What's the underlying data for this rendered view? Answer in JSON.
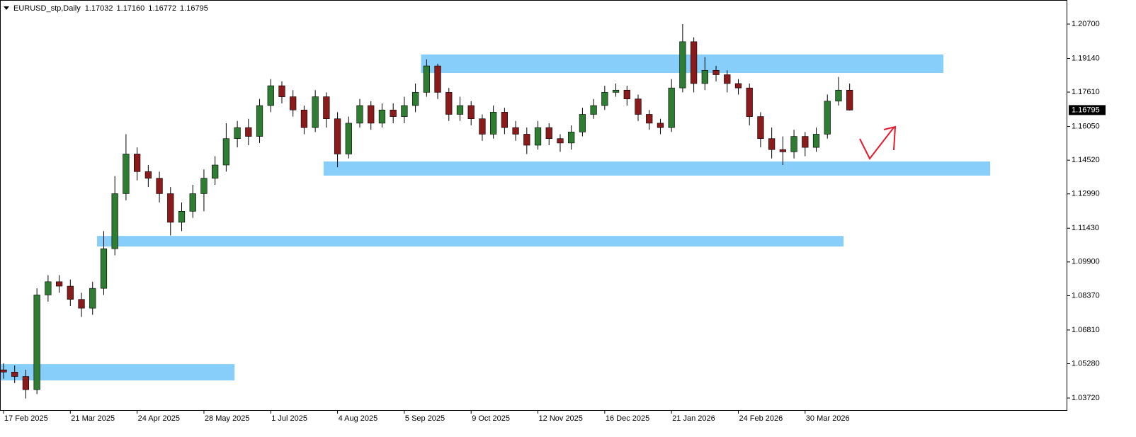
{
  "chart_data": {
    "type": "candlestick",
    "header": {
      "symbol": "EURUSD_stp,Daily",
      "ohlc": [
        {
          "value": 1.17032,
          "label": "1.17032"
        },
        {
          "value": 1.1716,
          "label": "1.17160"
        },
        {
          "value": 1.16772,
          "label": "1.16772"
        },
        {
          "value": 1.16795,
          "label": "1.16795"
        }
      ]
    },
    "bull_color": "#2e7d32",
    "bear_color": "#8b1a1a",
    "zone_color": "#87cefa",
    "x": [
      0,
      4,
      8,
      12,
      16,
      20,
      24,
      28,
      32,
      36,
      40,
      44,
      48,
      52,
      56,
      60,
      64,
      68,
      72,
      76,
      80,
      84,
      88,
      92,
      96,
      100,
      104,
      108,
      112,
      116,
      120,
      124,
      128,
      132,
      136,
      140,
      144,
      148,
      152,
      156,
      160,
      164,
      168,
      172,
      176,
      180,
      184,
      188,
      192,
      196,
      200,
      204,
      208,
      212,
      216,
      220,
      224,
      228,
      232,
      236,
      240,
      244,
      248,
      252,
      256,
      260,
      264,
      268,
      272,
      276,
      280,
      284,
      288,
      292,
      296,
      300,
      304
    ],
    "open": [
      1.05,
      1.049,
      1.047,
      1.041,
      1.084,
      1.09,
      1.088,
      1.082,
      1.078,
      1.087,
      1.105,
      1.13,
      1.148,
      1.14,
      1.137,
      1.13,
      1.117,
      1.122,
      1.13,
      1.137,
      1.143,
      1.155,
      1.16,
      1.156,
      1.17,
      1.179,
      1.174,
      1.168,
      1.16,
      1.174,
      1.164,
      1.148,
      1.162,
      1.17,
      1.162,
      1.168,
      1.165,
      1.17,
      1.176,
      1.188,
      1.176,
      1.166,
      1.17,
      1.164,
      1.157,
      1.167,
      1.16,
      1.157,
      1.152,
      1.16,
      1.155,
      1.153,
      1.158,
      1.166,
      1.17,
      1.176,
      1.177,
      1.173,
      1.166,
      1.162,
      1.16,
      1.178,
      1.199,
      1.18,
      1.186,
      1.184,
      1.18,
      1.178,
      1.165,
      1.155,
      1.15,
      1.149,
      1.156,
      1.151,
      1.157,
      1.172,
      1.177
    ],
    "high": [
      1.053,
      1.052,
      1.05,
      1.087,
      1.093,
      1.093,
      1.091,
      1.085,
      1.09,
      1.113,
      1.138,
      1.157,
      1.151,
      1.143,
      1.14,
      1.133,
      1.126,
      1.134,
      1.141,
      1.147,
      1.162,
      1.163,
      1.164,
      1.173,
      1.182,
      1.181,
      1.177,
      1.17,
      1.177,
      1.176,
      1.167,
      1.165,
      1.173,
      1.172,
      1.171,
      1.171,
      1.174,
      1.18,
      1.191,
      1.189,
      1.178,
      1.174,
      1.172,
      1.166,
      1.17,
      1.169,
      1.163,
      1.16,
      1.163,
      1.162,
      1.157,
      1.161,
      1.169,
      1.173,
      1.179,
      1.18,
      1.179,
      1.175,
      1.168,
      1.164,
      1.182,
      1.207,
      1.201,
      1.192,
      1.188,
      1.186,
      1.182,
      1.18,
      1.167,
      1.16,
      1.156,
      1.159,
      1.158,
      1.16,
      1.175,
      1.183,
      1.18
    ],
    "low": [
      1.046,
      1.044,
      1.037,
      1.039,
      1.081,
      1.085,
      1.079,
      1.074,
      1.075,
      1.084,
      1.102,
      1.127,
      1.136,
      1.133,
      1.126,
      1.111,
      1.113,
      1.119,
      1.122,
      1.134,
      1.14,
      1.151,
      1.152,
      1.153,
      1.167,
      1.171,
      1.165,
      1.157,
      1.158,
      1.16,
      1.142,
      1.146,
      1.16,
      1.159,
      1.16,
      1.162,
      1.162,
      1.167,
      1.174,
      1.173,
      1.163,
      1.163,
      1.161,
      1.154,
      1.155,
      1.157,
      1.154,
      1.148,
      1.15,
      1.152,
      1.149,
      1.15,
      1.156,
      1.164,
      1.168,
      1.174,
      1.17,
      1.163,
      1.159,
      1.157,
      1.158,
      1.176,
      1.176,
      1.177,
      1.181,
      1.176,
      1.175,
      1.161,
      1.151,
      1.146,
      1.143,
      1.146,
      1.147,
      1.149,
      1.155,
      1.17,
      1.16772
    ],
    "close": [
      1.049,
      1.047,
      1.041,
      1.084,
      1.09,
      1.088,
      1.082,
      1.078,
      1.087,
      1.105,
      1.13,
      1.148,
      1.14,
      1.137,
      1.13,
      1.117,
      1.122,
      1.13,
      1.137,
      1.143,
      1.155,
      1.16,
      1.156,
      1.17,
      1.179,
      1.174,
      1.168,
      1.16,
      1.174,
      1.164,
      1.148,
      1.162,
      1.17,
      1.162,
      1.168,
      1.165,
      1.17,
      1.176,
      1.188,
      1.176,
      1.166,
      1.17,
      1.164,
      1.157,
      1.167,
      1.16,
      1.157,
      1.152,
      1.16,
      1.155,
      1.153,
      1.158,
      1.166,
      1.17,
      1.176,
      1.177,
      1.173,
      1.166,
      1.162,
      1.16,
      1.178,
      1.199,
      1.18,
      1.186,
      1.184,
      1.18,
      1.178,
      1.165,
      1.155,
      1.15,
      1.149,
      1.156,
      1.151,
      1.157,
      1.172,
      1.177,
      1.16795
    ],
    "zones": [
      {
        "x": [
          115,
          354.5
        ],
        "ylim": [
          1.1382,
          1.1446
        ]
      },
      {
        "x": [
          150,
          337.7
        ],
        "ylim": [
          1.1848,
          1.1932
        ]
      },
      {
        "x": [
          33.6,
          301.8
        ],
        "ylim": [
          1.106,
          1.1108
        ]
      },
      {
        "x": [
          -1.3,
          83
        ],
        "ylim": [
          1.0452,
          1.0526
        ]
      }
    ],
    "last_price": {
      "value": 1.16795,
      "label": "1.16795"
    },
    "xlim": [
      -1.27,
      382.2
    ],
    "ylim": [
      1.03141,
      1.21793
    ],
    "xticks": [
      {
        "value": 0,
        "label": "17 Feb 2025"
      },
      {
        "value": 24,
        "label": "21 Mar 2025"
      },
      {
        "value": 48,
        "label": "24 Apr 2025"
      },
      {
        "value": 72,
        "label": "28 May 2025"
      },
      {
        "value": 96,
        "label": "1 Jul 2025"
      },
      {
        "value": 120,
        "label": "4 Aug 2025"
      },
      {
        "value": 144,
        "label": "5 Sep 2025"
      },
      {
        "value": 168,
        "label": "9 Oct 2025"
      },
      {
        "value": 192,
        "label": "12 Nov 2025"
      },
      {
        "value": 216,
        "label": "16 Dec 2025"
      },
      {
        "value": 240,
        "label": "21 Jan 2026"
      },
      {
        "value": 264,
        "label": "24 Feb 2026"
      },
      {
        "value": 288,
        "label": "30 Mar 2026"
      }
    ],
    "yticks": [
      {
        "value": 1.0372,
        "label": "1.03720"
      },
      {
        "value": 1.0528,
        "label": "1.05280"
      },
      {
        "value": 1.0681,
        "label": "1.06810"
      },
      {
        "value": 1.0837,
        "label": "1.08370"
      },
      {
        "value": 1.099,
        "label": "1.09900"
      },
      {
        "value": 1.1143,
        "label": "1.11430"
      },
      {
        "value": 1.1299,
        "label": "1.12990"
      },
      {
        "value": 1.1452,
        "label": "1.14520"
      },
      {
        "value": 1.1605,
        "label": "1.16050"
      },
      {
        "value": 1.1761,
        "label": "1.17610"
      },
      {
        "value": 1.1914,
        "label": "1.19140"
      },
      {
        "value": 1.207,
        "label": "1.20700"
      }
    ]
  }
}
